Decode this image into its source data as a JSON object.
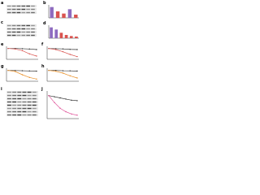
{
  "panels": [
    {
      "label": "a",
      "type": "blot"
    },
    {
      "label": "b",
      "type": "bar",
      "values": [
        1.0,
        0.6,
        0.4,
        0.8,
        0.3
      ],
      "colors": [
        "#8e6bbf",
        "#d9534f",
        "#d9534f",
        "#8e6bbf",
        "#d9534f"
      ],
      "ylim": [
        0,
        1.2
      ]
    },
    {
      "label": "c",
      "type": "blot"
    },
    {
      "label": "d",
      "type": "bar",
      "values": [
        1.0,
        0.8,
        0.5,
        0.3,
        0.2,
        0.15
      ],
      "colors": [
        "#8e6bbf",
        "#8e6bbf",
        "#d9534f",
        "#d9534f",
        "#d9534f",
        "#d9534f"
      ],
      "ylim": [
        0,
        1.2
      ]
    },
    {
      "label": "e",
      "type": "line",
      "x": [
        0,
        1,
        2,
        3,
        4
      ],
      "ylim": [
        0,
        1.2
      ],
      "series": [
        {
          "color": "#333333",
          "values": [
            1.0,
            1.0,
            0.98,
            0.95,
            0.9
          ]
        },
        {
          "color": "#d9534f",
          "values": [
            1.0,
            0.95,
            0.8,
            0.5,
            0.3
          ]
        }
      ]
    },
    {
      "label": "f",
      "type": "line",
      "x": [
        0,
        1,
        2,
        3,
        4
      ],
      "ylim": [
        0,
        1.2
      ],
      "series": [
        {
          "color": "#333333",
          "values": [
            1.0,
            0.98,
            0.96,
            0.92,
            0.9
          ]
        },
        {
          "color": "#d9534f",
          "values": [
            1.0,
            0.9,
            0.7,
            0.45,
            0.25
          ]
        }
      ]
    },
    {
      "label": "g",
      "type": "line",
      "x": [
        0,
        1,
        2,
        3,
        4
      ],
      "ylim": [
        0,
        1.2
      ],
      "series": [
        {
          "color": "#333333",
          "values": [
            1.0,
            0.99,
            0.97,
            0.95,
            0.93
          ]
        },
        {
          "color": "#e8902a",
          "values": [
            1.0,
            0.9,
            0.6,
            0.35,
            0.2
          ]
        }
      ]
    },
    {
      "label": "h",
      "type": "line",
      "x": [
        0,
        1,
        2,
        3,
        4
      ],
      "ylim": [
        0,
        1.2
      ],
      "series": [
        {
          "color": "#333333",
          "values": [
            1.0,
            1.0,
            0.97,
            0.96,
            0.94
          ]
        },
        {
          "color": "#e8902a",
          "values": [
            1.0,
            0.92,
            0.75,
            0.5,
            0.3
          ]
        }
      ]
    },
    {
      "label": "i",
      "type": "blot"
    },
    {
      "label": "j",
      "type": "line",
      "x": [
        0,
        1,
        2,
        3,
        4,
        5
      ],
      "ylim": [
        0,
        1.2
      ],
      "series": [
        {
          "color": "#333333",
          "values": [
            1.0,
            0.95,
            0.9,
            0.85,
            0.8,
            0.78
          ]
        },
        {
          "color": "#e0559a",
          "values": [
            1.0,
            0.7,
            0.45,
            0.3,
            0.2,
            0.15
          ]
        }
      ]
    }
  ]
}
